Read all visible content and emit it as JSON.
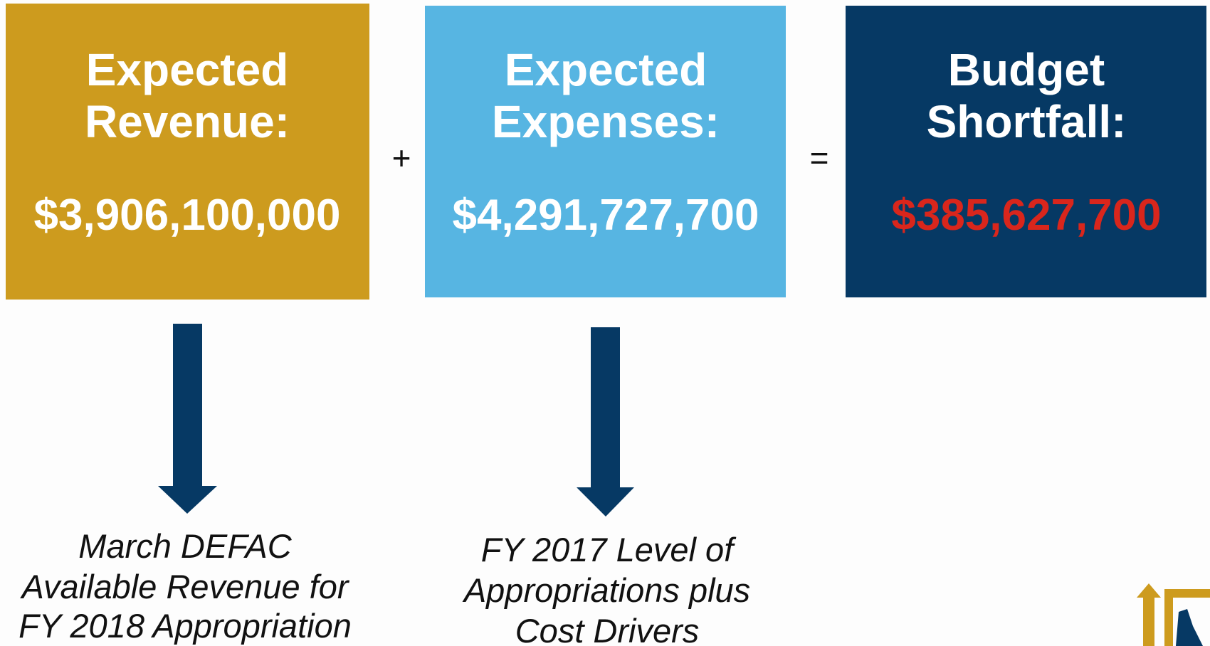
{
  "boxes": [
    {
      "title": [
        "Expected",
        "Revenue:"
      ],
      "amount": "$3,906,100,000",
      "note": [
        "March DEFAC",
        "Available Revenue for",
        "FY 2018 Appropriation"
      ]
    },
    {
      "title": [
        "Expected",
        "Expenses:"
      ],
      "amount": "$4,291,727,700",
      "note": [
        "FY 2017 Level of",
        "Appropriations plus",
        "Cost Drivers"
      ]
    },
    {
      "title": [
        "Budget",
        "Shortfall:"
      ],
      "amount": "$385,627,700"
    }
  ],
  "operators": [
    "+",
    "="
  ]
}
